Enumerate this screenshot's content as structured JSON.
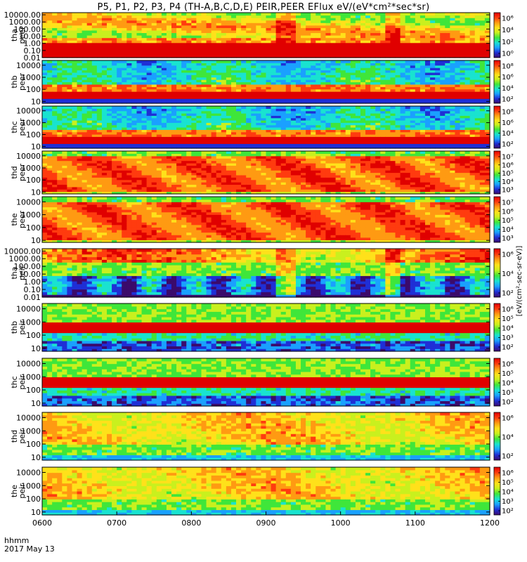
{
  "chart_data": {
    "type": "heatmap",
    "title": "P5, P1, P2, P3, P4 (TH-A,B,C,D,E) PEIR,PEER EFlux eV/(eV*cm²*sec*sr)",
    "x_tick_labels": [
      "0600",
      "0700",
      "0800",
      "0900",
      "1000",
      "1100",
      "1200"
    ],
    "x_ticks": [
      6,
      7,
      8,
      9,
      10,
      11,
      12
    ],
    "xlim": [
      6,
      12
    ],
    "footer": [
      "hhmm",
      "2017 May 13"
    ],
    "colorbar_label": "[eV/(cm²-sec-sr-eV)]",
    "panels": [
      {
        "label": "tha\npeer",
        "yscale": "log",
        "ylim": [
          0.01,
          20000
        ],
        "ticks": [
          "10000.00",
          "1000.00",
          "100.00",
          "10.00",
          "1.00",
          "0.10",
          "0.01"
        ],
        "tick_values": [
          10000,
          1000,
          100,
          10,
          1,
          0.1,
          0.01
        ],
        "cticks": [
          "10⁶",
          "10⁴",
          "10²",
          "10⁰"
        ]
      },
      {
        "label": "thb\npeer",
        "yscale": "log",
        "ylim": [
          7,
          25000
        ],
        "ticks": [
          "10000",
          "1000",
          "100",
          "10"
        ],
        "tick_values": [
          10000,
          1000,
          100,
          10
        ],
        "cticks": [
          "10⁸",
          "10⁶",
          "10⁴",
          "10²"
        ]
      },
      {
        "label": "thc\npeer",
        "yscale": "log",
        "ylim": [
          7,
          25000
        ],
        "ticks": [
          "10000",
          "1000",
          "100",
          "10"
        ],
        "tick_values": [
          10000,
          1000,
          100,
          10
        ],
        "cticks": [
          "10⁸",
          "10⁶",
          "10⁴",
          "10²"
        ]
      },
      {
        "label": "thd\npeer",
        "yscale": "log",
        "ylim": [
          7,
          25000
        ],
        "ticks": [
          "10000",
          "1000",
          "100",
          "10"
        ],
        "tick_values": [
          10000,
          1000,
          100,
          10
        ],
        "cticks": [
          "10⁷",
          "10⁶",
          "10⁵",
          "10⁴",
          "10³"
        ]
      },
      {
        "label": "the\npeer",
        "yscale": "log",
        "ylim": [
          7,
          25000
        ],
        "ticks": [
          "10000",
          "1000",
          "100",
          "10"
        ],
        "tick_values": [
          10000,
          1000,
          100,
          10
        ],
        "cticks": [
          "10⁷",
          "10⁶",
          "10⁵",
          "10⁴",
          "10³"
        ]
      },
      {
        "label": "tha\npeir",
        "yscale": "log",
        "ylim": [
          0.01,
          20000
        ],
        "ticks": [
          "10000.00",
          "1000.00",
          "100.00",
          "10.00",
          "1.00",
          "0.10",
          "0.01"
        ],
        "tick_values": [
          10000,
          1000,
          100,
          10,
          1,
          0.1,
          0.01
        ],
        "cticks": [
          "10⁶",
          "10⁴",
          "10²"
        ]
      },
      {
        "label": "thb\npeir",
        "yscale": "log",
        "ylim": [
          6,
          25000
        ],
        "ticks": [
          "10000",
          "1000",
          "100",
          "10"
        ],
        "tick_values": [
          10000,
          1000,
          100,
          10
        ],
        "cticks": [
          "10⁶",
          "10⁵",
          "10⁴",
          "10³",
          "10²"
        ]
      },
      {
        "label": "thc\npeir",
        "yscale": "log",
        "ylim": [
          6,
          25000
        ],
        "ticks": [
          "10000",
          "1000",
          "100",
          "10"
        ],
        "tick_values": [
          10000,
          1000,
          100,
          10
        ],
        "cticks": [
          "10⁶",
          "10⁵",
          "10⁴",
          "10³",
          "10²"
        ]
      },
      {
        "label": "thd\npeir",
        "yscale": "log",
        "ylim": [
          6,
          25000
        ],
        "ticks": [
          "10000",
          "1000",
          "100",
          "10"
        ],
        "tick_values": [
          10000,
          1000,
          100,
          10
        ],
        "cticks": [
          "10⁶",
          "10⁴",
          "10²"
        ]
      },
      {
        "label": "the\npeir",
        "yscale": "log",
        "ylim": [
          6,
          25000
        ],
        "ticks": [
          "10000",
          "1000",
          "100",
          "10"
        ],
        "tick_values": [
          10000,
          1000,
          100,
          10
        ],
        "cticks": [
          "10⁶",
          "10⁵",
          "10⁴",
          "10³",
          "10²"
        ]
      }
    ],
    "colormap": [
      "#3b0a6b",
      "#1f2fd6",
      "#1aa0ff",
      "#19e3d0",
      "#3fe63a",
      "#c9f01e",
      "#ffe11a",
      "#ff9a12",
      "#ff3b0f",
      "#e00000"
    ]
  }
}
